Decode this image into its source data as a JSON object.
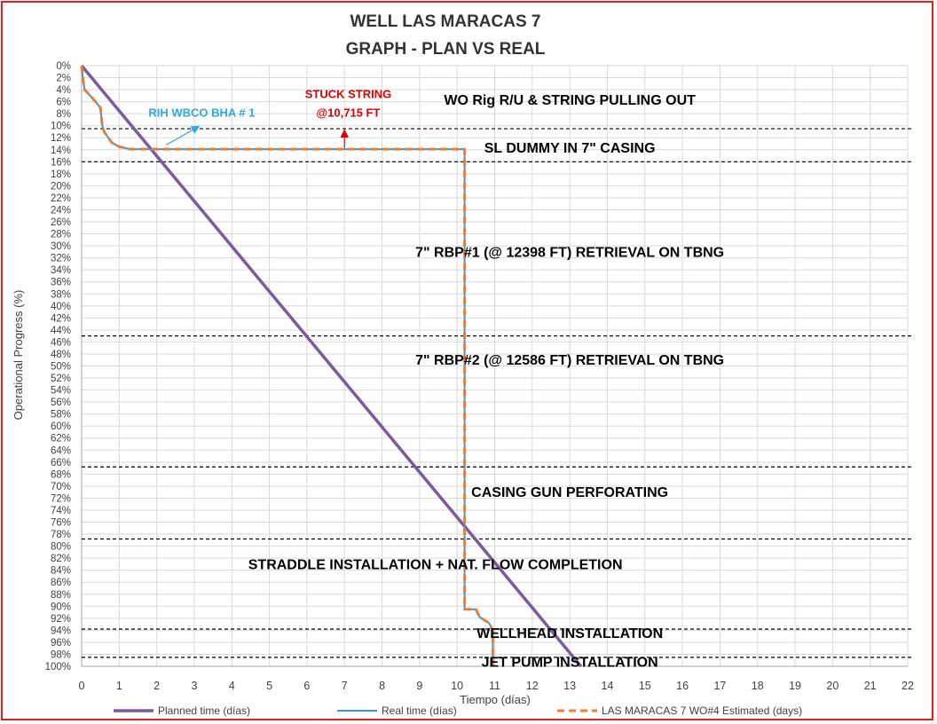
{
  "chart_data": {
    "type": "line",
    "title": [
      "WELL LAS MARACAS 7",
      "GRAPH  - PLAN VS REAL"
    ],
    "xlabel": "Tiempo (días)",
    "ylabel": "Operational Progress (%)",
    "xlim": [
      0,
      22
    ],
    "ylim": [
      0,
      100
    ],
    "y_inverted": true,
    "grid": true,
    "legend_position": "bottom",
    "x_ticks": [
      "0",
      "1",
      "2",
      "3",
      "4",
      "5",
      "6",
      "7",
      "8",
      "9",
      "10",
      "11",
      "12",
      "13",
      "14",
      "15",
      "16",
      "17",
      "18",
      "19",
      "20",
      "21",
      "22"
    ],
    "y_ticks": [
      "0%",
      "2%",
      "4%",
      "6%",
      "8%",
      "10%",
      "12%",
      "14%",
      "16%",
      "18%",
      "20%",
      "22%",
      "24%",
      "26%",
      "28%",
      "30%",
      "32%",
      "34%",
      "36%",
      "38%",
      "40%",
      "42%",
      "44%",
      "46%",
      "48%",
      "50%",
      "52%",
      "54%",
      "56%",
      "58%",
      "60%",
      "62%",
      "64%",
      "66%",
      "68%",
      "70%",
      "72%",
      "74%",
      "76%",
      "78%",
      "80%",
      "82%",
      "84%",
      "86%",
      "88%",
      "90%",
      "92%",
      "94%",
      "96%",
      "98%",
      "100%"
    ],
    "series": [
      {
        "name": "Planned time (días)",
        "color": "#7a5aa0",
        "style": "solid",
        "points": [
          [
            0,
            0
          ],
          [
            13.3,
            100
          ]
        ]
      },
      {
        "name": "Real time (días)",
        "color": "#3a9ad0",
        "style": "solid",
        "points": [
          [
            0,
            0
          ],
          [
            0.03,
            2
          ],
          [
            0.08,
            4
          ],
          [
            0.3,
            5.5
          ],
          [
            0.5,
            7
          ],
          [
            0.55,
            10
          ],
          [
            0.6,
            11
          ],
          [
            0.8,
            12.8
          ],
          [
            1.0,
            13.5
          ],
          [
            1.3,
            13.9
          ],
          [
            3.0,
            13.9
          ],
          [
            10.2,
            13.9
          ],
          [
            10.2,
            90.5
          ],
          [
            10.5,
            90.5
          ],
          [
            10.6,
            91.8
          ],
          [
            10.85,
            92.8
          ],
          [
            10.95,
            94
          ],
          [
            10.95,
            100
          ]
        ]
      },
      {
        "name": "LAS MARACAS 7 WO#4 Estimated (days)",
        "color": "#ed7d31",
        "style": "dashed",
        "points": [
          [
            0,
            0
          ],
          [
            0.03,
            2
          ],
          [
            0.08,
            4
          ],
          [
            0.3,
            5.5
          ],
          [
            0.5,
            7
          ],
          [
            0.55,
            10
          ],
          [
            0.6,
            11
          ],
          [
            0.8,
            12.8
          ],
          [
            1.0,
            13.5
          ],
          [
            1.3,
            13.9
          ],
          [
            3.0,
            13.9
          ],
          [
            10.2,
            13.9
          ],
          [
            10.2,
            90.5
          ],
          [
            10.5,
            90.5
          ],
          [
            10.6,
            91.8
          ],
          [
            10.85,
            92.8
          ],
          [
            10.95,
            94
          ],
          [
            10.95,
            100
          ]
        ]
      }
    ],
    "phase_boundaries": [
      10.5,
      16.0,
      45.0,
      66.8,
      78.8,
      93.8,
      98.5
    ],
    "phases": [
      {
        "label": "WO Rig R/U & STRING PULLING OUT",
        "x": 13,
        "y": 6.5
      },
      {
        "label": "SL DUMMY IN 7\" CASING",
        "x": 13,
        "y": 14.5
      },
      {
        "label": "7\" RBP#1 (@ 12398 FT) RETRIEVAL ON TBNG",
        "x": 13,
        "y": 31.8
      },
      {
        "label": "7\" RBP#2 (@ 12586 FT) RETRIEVAL ON TBNG",
        "x": 13,
        "y": 49.8
      },
      {
        "label": "CASING GUN PERFORATING",
        "x": 13,
        "y": 71.8
      },
      {
        "label": "STRADDLE INSTALLATION + NAT. FLOW COMPLETION",
        "x": 9.42,
        "y": 83.8
      },
      {
        "label": "WELLHEAD INSTALLATION",
        "x": 13,
        "y": 95.3
      },
      {
        "label": "JET PUMP INSTALLATION",
        "x": 13,
        "y": 100.1
      }
    ],
    "annotations": [
      {
        "label": "RIH WBCO BHA # 1",
        "color": "#2fa8e0",
        "x": 3.2,
        "y": 8.5,
        "arrow_from": [
          2.25,
          13.2
        ],
        "arrow_to": [
          3.1,
          10.2
        ]
      },
      {
        "label": "STUCK STRING",
        "color": "#e00000",
        "x": 7.1,
        "y": 5.4,
        "arrow_from": [
          7.0,
          13.7
        ],
        "arrow_to": [
          7.0,
          10.9
        ]
      },
      {
        "label": "@10,715 FT",
        "color": "#e00000",
        "x": 7.1,
        "y": 8.5
      }
    ]
  }
}
